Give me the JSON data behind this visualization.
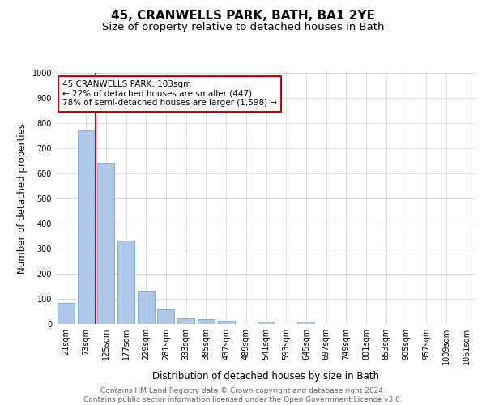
{
  "title": "45, CRANWELLS PARK, BATH, BA1 2YE",
  "subtitle": "Size of property relative to detached houses in Bath",
  "xlabel": "Distribution of detached houses by size in Bath",
  "ylabel": "Number of detached properties",
  "bar_color": "#aec6e8",
  "bar_edge_color": "#5a9fd4",
  "background_color": "#ffffff",
  "grid_color": "#d0d0d0",
  "annotation_box_color": "#cc0000",
  "annotation_text": "45 CRANWELLS PARK: 103sqm\n← 22% of detached houses are smaller (447)\n78% of semi-detached houses are larger (1,598) →",
  "vline_x_idx": 1.5,
  "vline_color": "#cc0000",
  "categories": [
    "21sqm",
    "73sqm",
    "125sqm",
    "177sqm",
    "229sqm",
    "281sqm",
    "333sqm",
    "385sqm",
    "437sqm",
    "489sqm",
    "541sqm",
    "593sqm",
    "645sqm",
    "697sqm",
    "749sqm",
    "801sqm",
    "853sqm",
    "905sqm",
    "957sqm",
    "1009sqm",
    "1061sqm"
  ],
  "values": [
    83,
    770,
    643,
    331,
    133,
    58,
    22,
    20,
    13,
    0,
    10,
    0,
    11,
    0,
    0,
    0,
    0,
    0,
    0,
    0,
    0
  ],
  "ylim": [
    0,
    1000
  ],
  "yticks": [
    0,
    100,
    200,
    300,
    400,
    500,
    600,
    700,
    800,
    900,
    1000
  ],
  "footer_text": "Contains HM Land Registry data © Crown copyright and database right 2024.\nContains public sector information licensed under the Open Government Licence v3.0.",
  "title_fontsize": 11,
  "subtitle_fontsize": 9.5,
  "axis_label_fontsize": 8.5,
  "tick_fontsize": 7,
  "annotation_fontsize": 7.5,
  "footer_fontsize": 6.5
}
